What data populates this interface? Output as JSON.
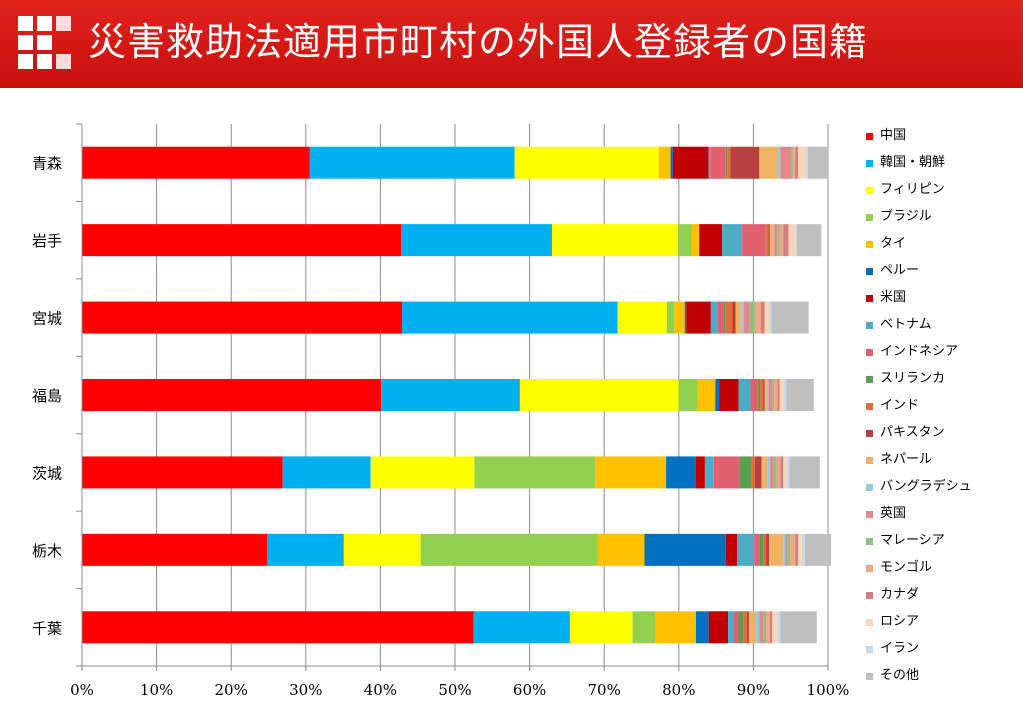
{
  "header": {
    "title": "災害救助法適用市町村の外国人登録者の国籍",
    "background": "#d7150f",
    "logo_icon": "red-squares-grid-icon"
  },
  "chart_data": {
    "type": "bar",
    "orientation": "horizontal",
    "stacked": "percent",
    "title": "",
    "xlabel": "",
    "ylabel": "",
    "xlim": [
      0,
      100
    ],
    "x_ticks": [
      "0%",
      "10%",
      "20%",
      "30%",
      "40%",
      "50%",
      "60%",
      "70%",
      "80%",
      "90%",
      "100%"
    ],
    "grid": true,
    "legend_position": "right",
    "categories": [
      "青森",
      "岩手",
      "宮城",
      "福島",
      "茨城",
      "栃木",
      "千葉"
    ],
    "series": [
      {
        "name": "中国",
        "color": "#ff0000",
        "values": [
          30.5,
          42.8,
          42.9,
          40.1,
          26.9,
          24.8,
          52.5
        ]
      },
      {
        "name": "韓国・朝鮮",
        "color": "#00b0f0",
        "values": [
          27.5,
          20.2,
          28.9,
          18.6,
          11.8,
          10.3,
          12.9
        ]
      },
      {
        "name": "フィリピン",
        "color": "#ffff00",
        "values": [
          19.3,
          16.9,
          6.6,
          21.3,
          13.9,
          10.3,
          8.4
        ]
      },
      {
        "name": "ブラジル",
        "color": "#92d050",
        "values": [
          0.0,
          1.8,
          1.0,
          2.5,
          16.2,
          23.7,
          3.1
        ]
      },
      {
        "name": "タイ",
        "color": "#ffc000",
        "values": [
          1.6,
          1.0,
          1.4,
          2.4,
          9.5,
          6.3,
          5.4
        ]
      },
      {
        "name": "ペルー",
        "color": "#0070c0",
        "values": [
          0.3,
          0.1,
          0.2,
          0.5,
          4.0,
          10.9,
          1.7
        ]
      },
      {
        "name": "米国",
        "color": "#c00000",
        "values": [
          4.8,
          3.0,
          3.3,
          2.6,
          1.2,
          1.5,
          2.6
        ]
      },
      {
        "name": "ベトナム",
        "color": "#4bacc6",
        "values": [
          0.2,
          2.7,
          0.9,
          1.6,
          1.2,
          2.3,
          0.8
        ]
      },
      {
        "name": "インドネシア",
        "color": "#e06070",
        "values": [
          2.1,
          3.1,
          0.8,
          1.0,
          3.5,
          0.7,
          0.6
        ]
      },
      {
        "name": "スリランカ",
        "color": "#5a9e4f",
        "values": [
          0.2,
          0.1,
          0.3,
          0.3,
          1.6,
          0.6,
          0.7
        ]
      },
      {
        "name": "インド",
        "color": "#e46c3a",
        "values": [
          0.4,
          0.3,
          0.9,
          0.4,
          0.4,
          0.3,
          0.4
        ]
      },
      {
        "name": "パキスタン",
        "color": "#b84040",
        "values": [
          3.9,
          0.2,
          0.4,
          0.2,
          0.9,
          0.4,
          0.3
        ]
      },
      {
        "name": "ネパール",
        "color": "#f2b266",
        "values": [
          2.5,
          0.4,
          0.7,
          0.3,
          0.8,
          1.9,
          0.9
        ]
      },
      {
        "name": "バングラデシュ",
        "color": "#92cddc",
        "values": [
          0.3,
          0.2,
          0.4,
          0.2,
          0.3,
          0.3,
          0.5
        ]
      },
      {
        "name": "英国",
        "color": "#e6878e",
        "values": [
          1.5,
          0.4,
          0.8,
          0.5,
          0.5,
          0.3,
          0.5
        ]
      },
      {
        "name": "マレーシア",
        "color": "#8bc37e",
        "values": [
          0.2,
          0.3,
          0.7,
          0.3,
          0.4,
          0.4,
          0.4
        ]
      },
      {
        "name": "モンゴル",
        "color": "#f4a582",
        "values": [
          0.3,
          0.5,
          0.8,
          0.4,
          0.5,
          0.6,
          0.5
        ]
      },
      {
        "name": "カナダ",
        "color": "#d47f7f",
        "values": [
          0.4,
          0.7,
          0.5,
          0.3,
          0.4,
          0.4,
          0.3
        ]
      },
      {
        "name": "ロシア",
        "color": "#fcd5b4",
        "values": [
          1.0,
          0.9,
          0.6,
          0.6,
          0.4,
          0.5,
          0.7
        ]
      },
      {
        "name": "イラン",
        "color": "#c5d9f1",
        "values": [
          0.3,
          0.2,
          0.3,
          0.3,
          0.4,
          0.4,
          0.4
        ]
      },
      {
        "name": "その他",
        "color": "#bfbfbf",
        "values": [
          2.8,
          3.3,
          5.0,
          3.7,
          4.1,
          3.5,
          4.9
        ]
      }
    ]
  }
}
